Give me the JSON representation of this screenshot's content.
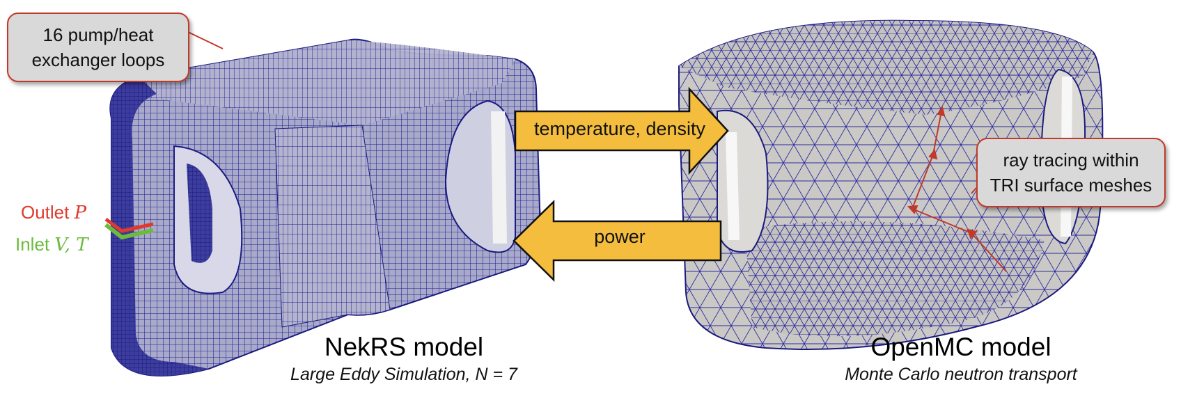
{
  "callouts": {
    "loops": [
      "16 pump/heat",
      "exchanger loops"
    ],
    "ray_tracing": [
      "ray tracing within",
      "TRI surface meshes"
    ]
  },
  "arrows": {
    "to_openmc": "temperature, density",
    "to_nekrs": "power"
  },
  "boundary_conditions": {
    "outlet_word": "Outlet",
    "outlet_var": "P",
    "inlet_word": "Inlet",
    "inlet_vars": "V, T"
  },
  "models": {
    "nekrs": {
      "title": "NekRS model",
      "subtitle": "Large Eddy Simulation, N = 7"
    },
    "openmc": {
      "title": "OpenMC model",
      "subtitle": "Monte Carlo neutron transport"
    }
  },
  "colors": {
    "mesh_line": "#1a1a8c",
    "nek_body": "#a8a8c8",
    "omc_body": "#c8c6c2",
    "arrow_fill": "#f4bd3e",
    "callout_border": "#c0392b",
    "outlet": "#e03a2c",
    "inlet": "#6dbb3c"
  }
}
